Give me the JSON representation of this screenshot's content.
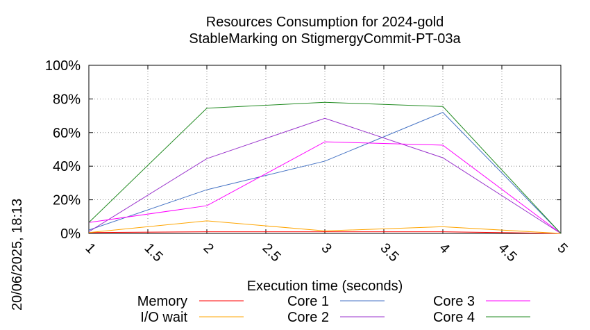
{
  "chart_data": {
    "type": "line",
    "title": "Resources Consumption for 2024-gold",
    "subtitle": "StableMarking on StigmergyCommit-PT-03a",
    "xlabel": "Execution time (seconds)",
    "ylabel": "",
    "side_label": "20/06/2025, 18:13",
    "x": [
      1,
      2,
      3,
      4,
      5
    ],
    "xlim": [
      1,
      5
    ],
    "ylim": [
      0,
      100
    ],
    "x_ticks": [
      "1",
      "1.5",
      "2",
      "2.5",
      "3",
      "3.5",
      "4",
      "4.5",
      "5"
    ],
    "y_ticks": [
      "0%",
      "20%",
      "40%",
      "60%",
      "80%",
      "100%"
    ],
    "grid": true,
    "legend_position": "bottom",
    "series": [
      {
        "name": "Memory",
        "color": "#ff0000",
        "values": [
          0.5,
          1,
          1,
          1,
          0
        ]
      },
      {
        "name": "I/O wait",
        "color": "#ffa500",
        "values": [
          0.5,
          7.5,
          1.5,
          4,
          0
        ]
      },
      {
        "name": "Core 1",
        "color": "#4472c4",
        "values": [
          2,
          26,
          43,
          72,
          0
        ]
      },
      {
        "name": "Core 2",
        "color": "#9932cc",
        "values": [
          1,
          44.5,
          68.5,
          45,
          0
        ]
      },
      {
        "name": "Core 3",
        "color": "#ff00ff",
        "values": [
          6.5,
          16.5,
          54.5,
          52.5,
          0
        ]
      },
      {
        "name": "Core 4",
        "color": "#228b22",
        "values": [
          6.5,
          74.5,
          78,
          75.5,
          0
        ]
      }
    ]
  }
}
